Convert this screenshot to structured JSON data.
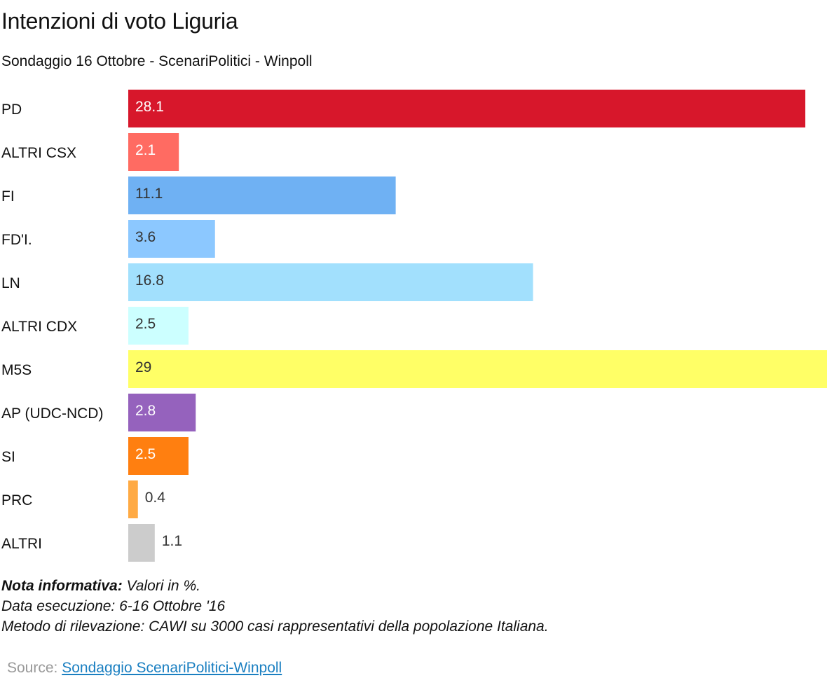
{
  "title": "Intenzioni di voto Liguria",
  "subtitle": "Sondaggio 16 Ottobre - ScenariPolitici - Winpoll",
  "notes": {
    "label": "Nota informativa:",
    "line1": " Valori in %.",
    "line2": "Data esecuzione: 6-16  Ottobre '16",
    "line3": "Metodo di rilevazione: CAWI su 3000 casi rappresentativi della popolazione Italiana."
  },
  "source": {
    "label": "Source: ",
    "link_text": "Sondaggio ScenariPolitici-Winpoll"
  },
  "chart_data": {
    "type": "bar",
    "orientation": "horizontal",
    "categories": [
      "PD",
      "ALTRI CSX",
      "FI",
      "FD'I.",
      "LN",
      "ALTRI CDX",
      "M5S",
      "AP (UDC-NCD)",
      "SI",
      "PRC",
      "ALTRI"
    ],
    "values": [
      28.1,
      2.1,
      11.1,
      3.6,
      16.8,
      2.5,
      29,
      2.8,
      2.5,
      0.4,
      1.1
    ],
    "value_labels": [
      "28.1",
      "2.1",
      "11.1",
      "3.6",
      "16.8",
      "2.5",
      "29",
      "2.8",
      "2.5",
      "0.4",
      "1.1"
    ],
    "colors": [
      "#d7172b",
      "#ff6b62",
      "#6fb1f3",
      "#8cc8ff",
      "#a2e0fd",
      "#ccffff",
      "#ffff66",
      "#9562bd",
      "#ff7f10",
      "#ffaa44",
      "#cccccc"
    ],
    "label_colors": [
      "#ffffff",
      "#ffffff",
      "#333333",
      "#333333",
      "#333333",
      "#333333",
      "#333333",
      "#ffffff",
      "#ffffff",
      "#333333",
      "#333333"
    ],
    "xlim": [
      0,
      29
    ],
    "grid": false,
    "legend": "none"
  }
}
